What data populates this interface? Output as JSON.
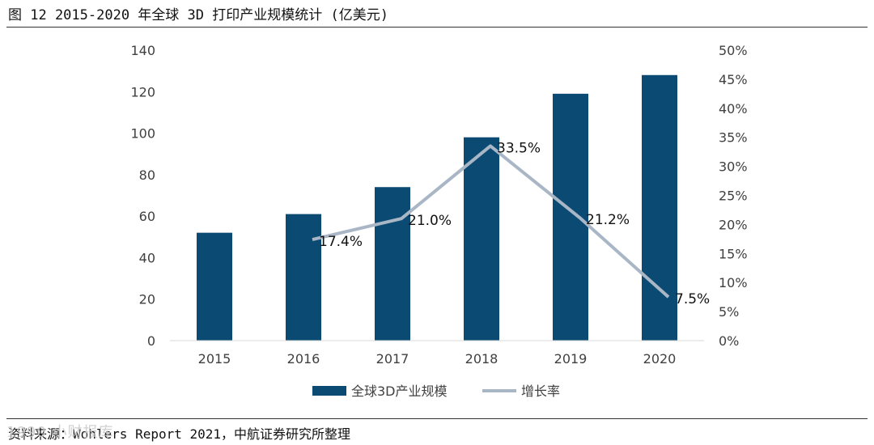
{
  "header": {
    "title": "图 12 2015-2020 年全球 3D 打印产业规模统计 (亿美元)"
  },
  "footer": {
    "source": "资料来源：Wohlers Report 2021，中航证券研究所整理",
    "watermark": "1990 小财报库"
  },
  "colors": {
    "bar": "#0b4a72",
    "line": "#a9b6c6",
    "axis": "#d9d9d9"
  },
  "chart_data": {
    "type": "bar",
    "title": "2015-2020 年全球 3D 打印产业规模统计 (亿美元)",
    "categories": [
      "2015",
      "2016",
      "2017",
      "2018",
      "2019",
      "2020"
    ],
    "series": [
      {
        "name": "全球3D产业规模",
        "type": "bar",
        "axis": "left",
        "values": [
          52,
          61,
          74,
          98,
          119,
          128
        ]
      },
      {
        "name": "增长率",
        "type": "line",
        "axis": "right",
        "values": [
          null,
          17.4,
          21.0,
          33.5,
          21.2,
          7.5
        ],
        "labels": [
          "",
          "17.4%",
          "21.0%",
          "33.5%",
          "21.2%",
          "7.5%"
        ]
      }
    ],
    "y_left": {
      "min": 0,
      "max": 140,
      "ticks": [
        0,
        20,
        40,
        60,
        80,
        100,
        120,
        140
      ],
      "tick_labels": [
        "0",
        "20",
        "40",
        "60",
        "80",
        "100",
        "120",
        "140"
      ]
    },
    "y_right": {
      "min": 0,
      "max": 50,
      "ticks": [
        0,
        5,
        10,
        15,
        20,
        25,
        30,
        35,
        40,
        45,
        50
      ],
      "tick_labels": [
        "0%",
        "5%",
        "10%",
        "15%",
        "20%",
        "25%",
        "30%",
        "35%",
        "40%",
        "45%",
        "50%"
      ]
    },
    "legend": {
      "position": "bottom",
      "items": [
        "全球3D产业规模",
        "增长率"
      ]
    },
    "grid": false
  }
}
